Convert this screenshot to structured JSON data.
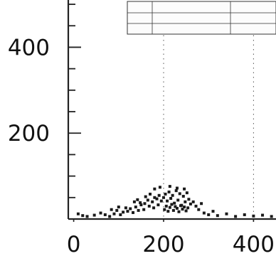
{
  "chart_data": {
    "type": "scatter",
    "title": "",
    "xlabel": "",
    "ylabel": "",
    "xlim": [
      -12,
      450
    ],
    "ylim": [
      0,
      510
    ],
    "x_ticks": [
      {
        "value": 0,
        "label": "0"
      },
      {
        "value": 200,
        "label": "200"
      },
      {
        "value": 400,
        "label": "400"
      }
    ],
    "y_ticks": [
      {
        "value": 200,
        "label": "200"
      },
      {
        "value": 400,
        "label": "400"
      }
    ],
    "vertical_reference_lines": [
      200,
      400
    ],
    "grid": false,
    "legend": "none",
    "colors": {
      "axis": "#222222",
      "points": "#1a1a1a",
      "reference": "#555555",
      "table_border": "#333333"
    },
    "points": [
      [
        200,
        50
      ],
      [
        204,
        58
      ],
      [
        208,
        42
      ],
      [
        212,
        63
      ],
      [
        216,
        48
      ],
      [
        220,
        55
      ],
      [
        224,
        37
      ],
      [
        228,
        66
      ],
      [
        232,
        44
      ],
      [
        236,
        59
      ],
      [
        240,
        32
      ],
      [
        244,
        53
      ],
      [
        248,
        40
      ],
      [
        252,
        61
      ],
      [
        256,
        46
      ],
      [
        260,
        35
      ],
      [
        202,
        22
      ],
      [
        206,
        30
      ],
      [
        210,
        18
      ],
      [
        214,
        27
      ],
      [
        218,
        34
      ],
      [
        222,
        20
      ],
      [
        226,
        29
      ],
      [
        230,
        25
      ],
      [
        234,
        17
      ],
      [
        238,
        31
      ],
      [
        242,
        23
      ],
      [
        246,
        28
      ],
      [
        250,
        19
      ],
      [
        254,
        26
      ],
      [
        160,
        52
      ],
      [
        165,
        44
      ],
      [
        170,
        58
      ],
      [
        175,
        40
      ],
      [
        180,
        50
      ],
      [
        185,
        47
      ],
      [
        190,
        55
      ],
      [
        195,
        42
      ],
      [
        158,
        36
      ],
      [
        168,
        30
      ],
      [
        178,
        26
      ],
      [
        188,
        33
      ],
      [
        120,
        18
      ],
      [
        126,
        24
      ],
      [
        132,
        15
      ],
      [
        138,
        28
      ],
      [
        144,
        20
      ],
      [
        150,
        33
      ],
      [
        156,
        22
      ],
      [
        135,
        40
      ],
      [
        142,
        45
      ],
      [
        148,
        38
      ],
      [
        90,
        12
      ],
      [
        96,
        20
      ],
      [
        104,
        10
      ],
      [
        110,
        16
      ],
      [
        116,
        26
      ],
      [
        100,
        28
      ],
      [
        84,
        22
      ],
      [
        10,
        12
      ],
      [
        20,
        8
      ],
      [
        30,
        6
      ],
      [
        46,
        9
      ],
      [
        60,
        14
      ],
      [
        70,
        10
      ],
      [
        80,
        6
      ],
      [
        266,
        40
      ],
      [
        272,
        30
      ],
      [
        278,
        22
      ],
      [
        284,
        36
      ],
      [
        290,
        14
      ],
      [
        300,
        10
      ],
      [
        310,
        18
      ],
      [
        320,
        8
      ],
      [
        340,
        12
      ],
      [
        360,
        6
      ],
      [
        380,
        10
      ],
      [
        400,
        7
      ],
      [
        420,
        9
      ],
      [
        440,
        6
      ],
      [
        180,
        70
      ],
      [
        192,
        74
      ],
      [
        214,
        76
      ],
      [
        230,
        72
      ],
      [
        246,
        70
      ]
    ],
    "table": {
      "header": [
        "",
        "",
        ""
      ],
      "rows": [
        [
          "",
          "",
          ""
        ],
        [
          "",
          "",
          ""
        ],
        [
          "",
          "",
          ""
        ]
      ]
    }
  }
}
